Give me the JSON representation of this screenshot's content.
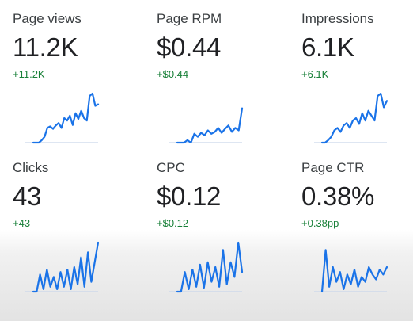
{
  "metrics": [
    {
      "id": "page-views",
      "label": "Page views",
      "value": "11.2K",
      "delta": "+11.2K",
      "sparkline": [
        0,
        0,
        0,
        0.05,
        0.12,
        0.3,
        0.33,
        0.28,
        0.35,
        0.4,
        0.3,
        0.5,
        0.45,
        0.55,
        0.36,
        0.6,
        0.48,
        0.65,
        0.5,
        0.45,
        0.95,
        1.0,
        0.75,
        0.78
      ]
    },
    {
      "id": "page-rpm",
      "label": "Page RPM",
      "value": "$0.44",
      "delta": "+$0.44",
      "sparkline": [
        0,
        0,
        0,
        0.05,
        0.0,
        0.18,
        0.12,
        0.2,
        0.15,
        0.25,
        0.18,
        0.22,
        0.3,
        0.2,
        0.28,
        0.35,
        0.22,
        0.3,
        0.25,
        0.7
      ]
    },
    {
      "id": "impressions",
      "label": "Impressions",
      "value": "6.1K",
      "delta": "+6.1K",
      "sparkline": [
        0,
        0,
        0.05,
        0.12,
        0.25,
        0.3,
        0.22,
        0.35,
        0.4,
        0.3,
        0.45,
        0.5,
        0.38,
        0.6,
        0.45,
        0.65,
        0.55,
        0.45,
        0.95,
        1.0,
        0.72,
        0.85
      ]
    },
    {
      "id": "clicks",
      "label": "Clicks",
      "value": "43",
      "delta": "+43",
      "sparkline": [
        0,
        0,
        0.35,
        0.05,
        0.45,
        0.1,
        0.3,
        0.05,
        0.4,
        0.1,
        0.45,
        0.05,
        0.5,
        0.15,
        0.7,
        0.1,
        0.8,
        0.2,
        0.6,
        1.0
      ]
    },
    {
      "id": "cpc",
      "label": "CPC",
      "value": "$0.12",
      "delta": "+$0.12",
      "sparkline": [
        0,
        0,
        0.4,
        0.05,
        0.45,
        0.1,
        0.55,
        0.08,
        0.6,
        0.2,
        0.5,
        0.1,
        0.85,
        0.15,
        0.6,
        0.3,
        1.0,
        0.4
      ]
    },
    {
      "id": "page-ctr",
      "label": "Page CTR",
      "value": "0.38%",
      "delta": "+0.38pp",
      "sparkline": [
        0,
        0.85,
        0.1,
        0.5,
        0.2,
        0.4,
        0.05,
        0.35,
        0.15,
        0.45,
        0.1,
        0.3,
        0.2,
        0.5,
        0.35,
        0.25,
        0.45,
        0.35,
        0.5
      ]
    }
  ],
  "colors": {
    "line": "#1a73e8",
    "delta": "#188038",
    "label": "#3c4043",
    "value": "#202124"
  }
}
